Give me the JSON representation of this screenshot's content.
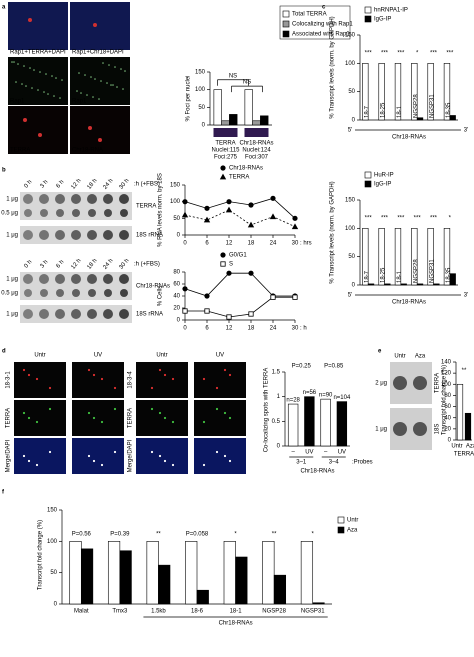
{
  "panel_labels": [
    "a",
    "b",
    "c",
    "d",
    "e",
    "f"
  ],
  "panel_a_images": {
    "labels": [
      "Rap1+TERRA+DAPI",
      "Rap1+Chr18+DAPI",
      "Rap1",
      "Rap1",
      "TERRA",
      "Chr18-RNA"
    ]
  },
  "panel_b_blots": {
    "times": [
      "0 h",
      "3 h",
      "6 h",
      "12 h",
      "18 h",
      "24 h",
      "30 h"
    ],
    "condition": ":h (+FBS)",
    "amounts": [
      "1 μg",
      "0.5 μg"
    ],
    "probes": [
      "TERRA",
      "18S rRNA",
      "Chr18-RNAs",
      "18S rRNA"
    ]
  },
  "panel_d_images": {
    "columns": [
      "Untr",
      "UV",
      "Untr",
      "UV"
    ],
    "probes": [
      "18-3-1",
      "18-3-4"
    ],
    "rows": [
      "TERRA",
      "Merge/DAPI"
    ]
  },
  "panel_e_blot": {
    "columns": [
      "Untr",
      "Aza"
    ],
    "amounts": [
      "2 μg",
      "1 μg"
    ],
    "probes": [
      "TERRA",
      "18S"
    ]
  },
  "chart_data": [
    {
      "type": "bar",
      "ylabel": "% Foci per nuclei",
      "categories": [
        "TERRA",
        "Chr18-RNAs"
      ],
      "category_notes": [
        [
          "Nuclei:115",
          "Foci:275"
        ],
        [
          "Nuclei:124",
          "Foci:307"
        ]
      ],
      "series": [
        {
          "name": "Total TERRA",
          "color": "#ffffff",
          "values": [
            100,
            100
          ]
        },
        {
          "name": "Colocalizing with Rap1",
          "color": "#999999",
          "values": [
            12,
            12
          ]
        },
        {
          "name": "Associated with Rap1",
          "color": "#000000",
          "values": [
            30,
            26
          ]
        }
      ],
      "ylim": [
        0,
        150
      ],
      "yticks": [
        0,
        50,
        100,
        150
      ],
      "annotations": [
        "NS",
        "NS"
      ]
    },
    {
      "type": "line",
      "ylabel": "% RNA levels norm. by 18S",
      "xlabel": ": hrs",
      "x": [
        0,
        6,
        12,
        18,
        24,
        30
      ],
      "xlim": [
        0,
        30
      ],
      "xticks": [
        0,
        6,
        12,
        18,
        24,
        30
      ],
      "series": [
        {
          "name": "Chr18-RNAs",
          "color": "#000000",
          "marker": "circle",
          "values": [
            100,
            80,
            100,
            90,
            110,
            50
          ]
        },
        {
          "name": "TERRA",
          "color": "#000000",
          "marker": "triangle",
          "dash": true,
          "values": [
            60,
            45,
            75,
            30,
            55,
            25
          ]
        }
      ],
      "ylim": [
        0,
        150
      ],
      "yticks": [
        0,
        50,
        100,
        150
      ]
    },
    {
      "type": "line",
      "ylabel": "% Cells",
      "xlabel": ": h",
      "x": [
        0,
        6,
        12,
        18,
        24,
        30
      ],
      "xlim": [
        0,
        30
      ],
      "xticks": [
        0,
        6,
        12,
        18,
        24,
        30
      ],
      "series": [
        {
          "name": "G0/G1",
          "color": "#000000",
          "marker": "circle",
          "values": [
            52,
            40,
            78,
            78,
            40,
            40
          ]
        },
        {
          "name": "S",
          "color": "#000000",
          "marker": "square",
          "open": true,
          "values": [
            15,
            15,
            5,
            10,
            38,
            38
          ]
        }
      ],
      "ylim": [
        0,
        80
      ],
      "yticks": [
        0,
        20,
        40,
        60,
        80
      ]
    },
    {
      "type": "bar",
      "ylabel": "% Transcript levels (norm. by GAPDH)",
      "xlabel": "Chr18-RNAs",
      "ends": [
        "5'",
        "3'"
      ],
      "categories": [
        "18-7",
        "18-25",
        "18-1",
        "NGSP28",
        "NGSP31",
        "18-35"
      ],
      "series": [
        {
          "name": "hnRNPA1-IP",
          "color": "#ffffff",
          "values": [
            100,
            100,
            100,
            100,
            100,
            100
          ]
        },
        {
          "name": "IgG-IP",
          "color": "#000000",
          "values": [
            0,
            0,
            0,
            4,
            0,
            8
          ]
        }
      ],
      "ylim": [
        0,
        150
      ],
      "yticks": [
        0,
        50,
        100,
        150
      ],
      "significance": [
        "***",
        "***",
        "***",
        "*",
        "***",
        "***"
      ]
    },
    {
      "type": "bar",
      "ylabel": "% Transcript levels (norm. by GAPDH)",
      "xlabel": "Chr18-RNAs",
      "ends": [
        "5'",
        "3'"
      ],
      "categories": [
        "18-7",
        "18-25",
        "18-1",
        "NGSP28",
        "NGSP31",
        "18-35"
      ],
      "series": [
        {
          "name": "HuR-IP",
          "color": "#ffffff",
          "values": [
            100,
            100,
            100,
            100,
            100,
            100
          ]
        },
        {
          "name": "IgG-IP",
          "color": "#000000",
          "values": [
            2,
            2,
            2,
            2,
            2,
            20
          ]
        }
      ],
      "ylim": [
        0,
        150
      ],
      "yticks": [
        0,
        50,
        100,
        150
      ],
      "significance": [
        "***",
        "***",
        "***",
        "***",
        "***",
        "*"
      ]
    },
    {
      "type": "bar",
      "ylabel": "Co-localizing spots with TERRA",
      "xlabel": "Chr18-RNAs",
      "categories": [
        "–",
        "UV",
        "–",
        "UV"
      ],
      "groups": [
        "3–1",
        "3–4"
      ],
      "group_suffix": ":Probes",
      "values": [
        0.85,
        1.0,
        0.95,
        0.9
      ],
      "colors": [
        "#ffffff",
        "#000000",
        "#ffffff",
        "#000000"
      ],
      "n_labels": [
        "n=28",
        "n=56",
        "n=90",
        "n=104"
      ],
      "p_values": [
        "P=0.25",
        "P=0.85"
      ],
      "ylim": [
        0,
        1.5
      ],
      "yticks": [
        0,
        0.5,
        1,
        1.5
      ]
    },
    {
      "type": "bar",
      "ylabel": "Transcript fold change (%)",
      "xlabel": "TERRA",
      "categories": [
        "Untr",
        "Aza"
      ],
      "values": [
        100,
        48
      ],
      "colors": [
        "#ffffff",
        "#000000"
      ],
      "ylim": [
        0,
        140
      ],
      "yticks": [
        0,
        20,
        40,
        60,
        80,
        100,
        120,
        140
      ],
      "annotations": [
        "**"
      ]
    },
    {
      "type": "bar",
      "ylabel": "Transcript fold change (%)",
      "group_label": "Chr18-RNAs",
      "categories": [
        "Malat",
        "Tmx3",
        "1.5kb",
        "18-6",
        "18-1",
        "NGSP28",
        "NGSP31"
      ],
      "series": [
        {
          "name": "Untr",
          "color": "#ffffff",
          "values": [
            100,
            100,
            100,
            100,
            100,
            100,
            100
          ]
        },
        {
          "name": "Aza",
          "color": "#000000",
          "values": [
            88,
            85,
            62,
            22,
            75,
            46,
            2
          ]
        }
      ],
      "ylim": [
        0,
        150
      ],
      "yticks": [
        0,
        50,
        100,
        150
      ],
      "significance": [
        "P=0.56",
        "P=0.39",
        "**",
        "P=0.058",
        "*",
        "**",
        "*"
      ]
    }
  ]
}
